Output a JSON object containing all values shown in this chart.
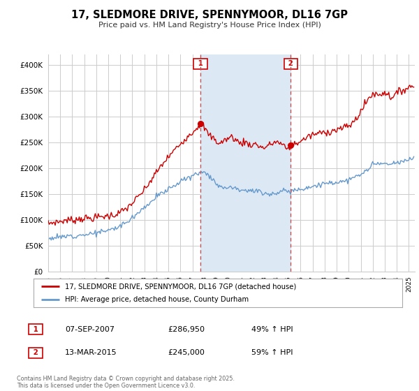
{
  "title": "17, SLEDMORE DRIVE, SPENNYMOOR, DL16 7GP",
  "subtitle": "Price paid vs. HM Land Registry's House Price Index (HPI)",
  "ylim": [
    0,
    420000
  ],
  "yticks": [
    0,
    50000,
    100000,
    150000,
    200000,
    250000,
    300000,
    350000,
    400000
  ],
  "ytick_labels": [
    "£0",
    "£50K",
    "£100K",
    "£150K",
    "£200K",
    "£250K",
    "£300K",
    "£350K",
    "£400K"
  ],
  "red_line_color": "#cc0000",
  "blue_line_color": "#6699cc",
  "background_color": "#ffffff",
  "grid_color": "#cccccc",
  "shade_color": "#dce9f5",
  "sale1_date_x": 2007.68,
  "sale1_price": 286950,
  "sale1_label": "1",
  "sale2_date_x": 2015.18,
  "sale2_price": 245000,
  "sale2_label": "2",
  "legend_red_label": "17, SLEDMORE DRIVE, SPENNYMOOR, DL16 7GP (detached house)",
  "legend_blue_label": "HPI: Average price, detached house, County Durham",
  "annotation1_date": "07-SEP-2007",
  "annotation1_price": "£286,950",
  "annotation1_hpi": "49% ↑ HPI",
  "annotation2_date": "13-MAR-2015",
  "annotation2_price": "£245,000",
  "annotation2_hpi": "59% ↑ HPI",
  "footer": "Contains HM Land Registry data © Crown copyright and database right 2025.\nThis data is licensed under the Open Government Licence v3.0.",
  "xmin": 1995.0,
  "xmax": 2025.5
}
